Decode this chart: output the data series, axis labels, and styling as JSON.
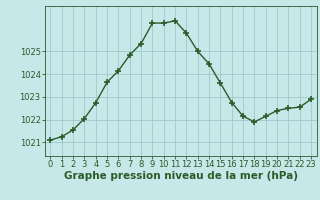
{
  "x": [
    0,
    1,
    2,
    3,
    4,
    5,
    6,
    7,
    8,
    9,
    10,
    11,
    12,
    13,
    14,
    15,
    16,
    17,
    18,
    19,
    20,
    21,
    22,
    23
  ],
  "y": [
    1021.1,
    1021.25,
    1021.55,
    1022.05,
    1022.75,
    1023.65,
    1024.15,
    1024.85,
    1025.35,
    1026.25,
    1026.25,
    1026.35,
    1025.8,
    1025.0,
    1024.45,
    1023.6,
    1022.75,
    1022.15,
    1021.9,
    1022.15,
    1022.4,
    1022.5,
    1022.55,
    1022.9
  ],
  "line_color": "#2a5c2a",
  "marker": "+",
  "marker_size": 4,
  "marker_linewidth": 1.2,
  "bg_color": "#c6e8e8",
  "grid_color": "#a0c8c8",
  "xlabel": "Graphe pression niveau de la mer (hPa)",
  "xlabel_fontsize": 7.5,
  "ylabel_ticks": [
    1021,
    1022,
    1023,
    1024,
    1025
  ],
  "ylim": [
    1020.4,
    1027.0
  ],
  "xlim": [
    -0.5,
    23.5
  ],
  "xtick_labels": [
    "0",
    "1",
    "2",
    "3",
    "4",
    "5",
    "6",
    "7",
    "8",
    "9",
    "10",
    "11",
    "12",
    "13",
    "14",
    "15",
    "16",
    "17",
    "18",
    "19",
    "20",
    "21",
    "22",
    "23"
  ],
  "tick_fontsize": 6,
  "line_width": 1.0
}
